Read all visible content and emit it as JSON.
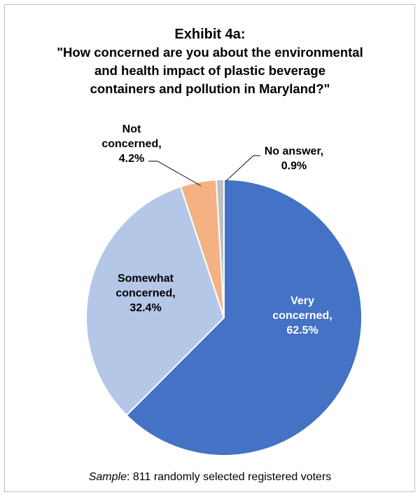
{
  "chart_data": {
    "type": "pie",
    "title": "Exhibit 4a:",
    "subtitle_lines": [
      "\"How concerned are you about the environmental",
      "and health impact of plastic beverage",
      "containers and pollution in Maryland?\""
    ],
    "slices": [
      {
        "category": "Very concerned",
        "value": 62.5,
        "label_lines": [
          "Very",
          "concerned,",
          "62.5%"
        ],
        "color": "#4472C4",
        "label_color": "#ffffff"
      },
      {
        "category": "Somewhat concerned",
        "value": 32.4,
        "label_lines": [
          "Somewhat",
          "concerned,",
          "32.4%"
        ],
        "color": "#B4C7E7",
        "label_color": "#000000"
      },
      {
        "category": "Not concerned",
        "value": 4.2,
        "label_lines": [
          "Not",
          "concerned,",
          "4.2%"
        ],
        "color": "#F4B183",
        "label_color": "#000000"
      },
      {
        "category": "No answer",
        "value": 0.9,
        "label_lines": [
          "No answer,",
          "0.9%"
        ],
        "color": "#BFBFBF",
        "label_color": "#000000"
      }
    ]
  },
  "footer": {
    "sample_label": "Sample",
    "sample_text": ": 811 randomly selected registered voters"
  }
}
